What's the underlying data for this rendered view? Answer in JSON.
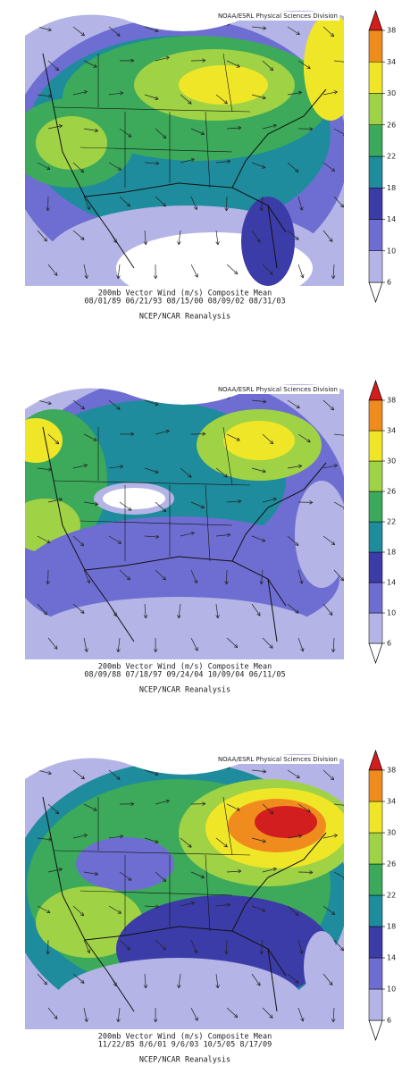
{
  "colorbar": {
    "ticks": [
      6,
      10,
      14,
      18,
      22,
      26,
      30,
      34,
      38
    ],
    "colors": [
      "#ffffff",
      "#b4b4e6",
      "#6e6ed2",
      "#3c3ca8",
      "#1e8c9c",
      "#3caa5a",
      "#a0d246",
      "#f0e628",
      "#f08c1e",
      "#d21e1e"
    ]
  },
  "panels": [
    {
      "header": "NOAA/ESRL Physical Sciences Division",
      "caption": [
        "200mb Vector Wind (m/s) Composite Mean",
        "08/01/89 06/21/93 08/15/00 08/09/02 08/31/03",
        "NCEP/NCAR Reanalysis"
      ]
    },
    {
      "header": "NOAA/ESRL Physical Sciences Division",
      "caption": [
        "200mb Vector Wind (m/s) Composite Mean",
        "08/09/88 07/18/97 09/24/04 10/09/04 06/11/05",
        "NCEP/NCAR Reanalysis"
      ]
    },
    {
      "header": "NOAA/ESRL Physical Sciences Division",
      "caption": [
        "200mb Vector Wind (m/s) Composite Mean",
        "11/22/85 8/6/01 9/6/03 10/5/05 8/17/09",
        "NCEP/NCAR Reanalysis"
      ]
    }
  ]
}
